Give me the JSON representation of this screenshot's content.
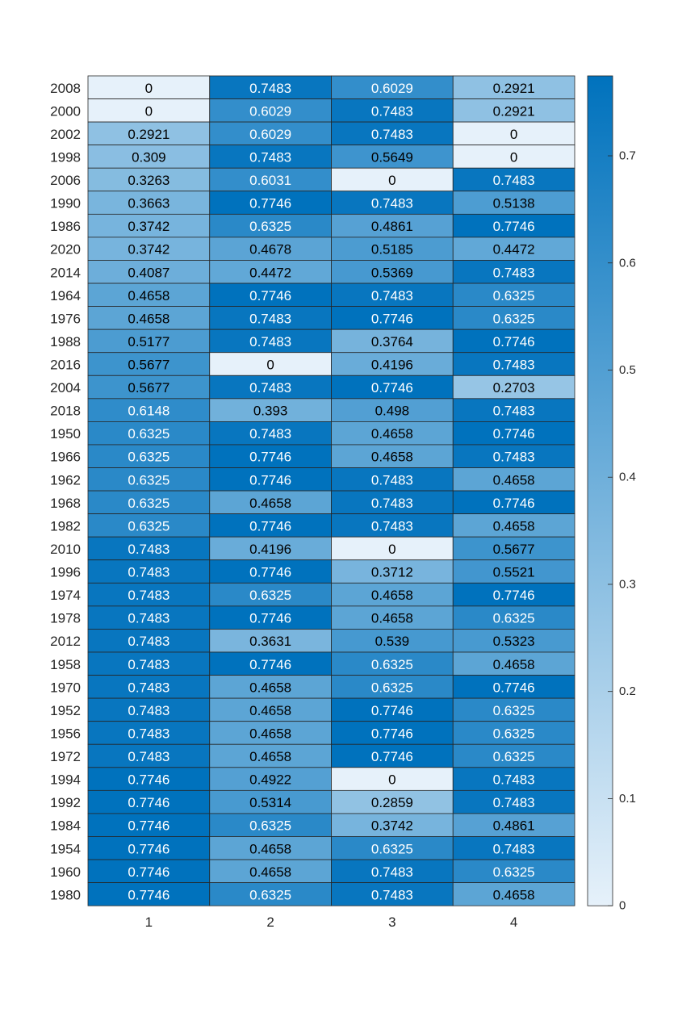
{
  "chart_data": {
    "type": "heatmap",
    "title": "",
    "xlabel": "",
    "ylabel": "",
    "columns": [
      "1",
      "2",
      "3",
      "4"
    ],
    "rows": [
      "2008",
      "2000",
      "2002",
      "1998",
      "2006",
      "1990",
      "1986",
      "2020",
      "2014",
      "1964",
      "1976",
      "1988",
      "2016",
      "2004",
      "2018",
      "1950",
      "1966",
      "1962",
      "1968",
      "1982",
      "2010",
      "1996",
      "1974",
      "1978",
      "2012",
      "1958",
      "1970",
      "1952",
      "1956",
      "1972",
      "1994",
      "1992",
      "1984",
      "1954",
      "1960",
      "1980"
    ],
    "values": [
      [
        "0",
        "0.7483",
        "0.6029",
        "0.2921"
      ],
      [
        "0",
        "0.6029",
        "0.7483",
        "0.2921"
      ],
      [
        "0.2921",
        "0.6029",
        "0.7483",
        "0"
      ],
      [
        "0.309",
        "0.7483",
        "0.5649",
        "0"
      ],
      [
        "0.3263",
        "0.6031",
        "0",
        "0.7483"
      ],
      [
        "0.3663",
        "0.7746",
        "0.7483",
        "0.5138"
      ],
      [
        "0.3742",
        "0.6325",
        "0.4861",
        "0.7746"
      ],
      [
        "0.3742",
        "0.4678",
        "0.5185",
        "0.4472"
      ],
      [
        "0.4087",
        "0.4472",
        "0.5369",
        "0.7483"
      ],
      [
        "0.4658",
        "0.7746",
        "0.7483",
        "0.6325"
      ],
      [
        "0.4658",
        "0.7483",
        "0.7746",
        "0.6325"
      ],
      [
        "0.5177",
        "0.7483",
        "0.3764",
        "0.7746"
      ],
      [
        "0.5677",
        "0",
        "0.4196",
        "0.7483"
      ],
      [
        "0.5677",
        "0.7483",
        "0.7746",
        "0.2703"
      ],
      [
        "0.6148",
        "0.393",
        "0.498",
        "0.7483"
      ],
      [
        "0.6325",
        "0.7483",
        "0.4658",
        "0.7746"
      ],
      [
        "0.6325",
        "0.7746",
        "0.4658",
        "0.7483"
      ],
      [
        "0.6325",
        "0.7746",
        "0.7483",
        "0.4658"
      ],
      [
        "0.6325",
        "0.4658",
        "0.7483",
        "0.7746"
      ],
      [
        "0.6325",
        "0.7746",
        "0.7483",
        "0.4658"
      ],
      [
        "0.7483",
        "0.4196",
        "0",
        "0.5677"
      ],
      [
        "0.7483",
        "0.7746",
        "0.3712",
        "0.5521"
      ],
      [
        "0.7483",
        "0.6325",
        "0.4658",
        "0.7746"
      ],
      [
        "0.7483",
        "0.7746",
        "0.4658",
        "0.6325"
      ],
      [
        "0.7483",
        "0.3631",
        "0.539",
        "0.5323"
      ],
      [
        "0.7483",
        "0.7746",
        "0.6325",
        "0.4658"
      ],
      [
        "0.7483",
        "0.4658",
        "0.6325",
        "0.7746"
      ],
      [
        "0.7483",
        "0.4658",
        "0.7746",
        "0.6325"
      ],
      [
        "0.7483",
        "0.4658",
        "0.7746",
        "0.6325"
      ],
      [
        "0.7483",
        "0.4658",
        "0.7746",
        "0.6325"
      ],
      [
        "0.7746",
        "0.4922",
        "0",
        "0.7483"
      ],
      [
        "0.7746",
        "0.5314",
        "0.2859",
        "0.7483"
      ],
      [
        "0.7746",
        "0.6325",
        "0.3742",
        "0.4861"
      ],
      [
        "0.7746",
        "0.4658",
        "0.6325",
        "0.7483"
      ],
      [
        "0.7746",
        "0.4658",
        "0.7483",
        "0.6325"
      ],
      [
        "0.7746",
        "0.6325",
        "0.7483",
        "0.4658"
      ]
    ],
    "colorbar": {
      "range": [
        0,
        0.7746
      ],
      "ticks": [
        "0",
        "0.1",
        "0.2",
        "0.3",
        "0.4",
        "0.5",
        "0.6",
        "0.7"
      ],
      "color_low": "#e6f1fa",
      "color_high": "#0072bd"
    },
    "grid": false,
    "legend": "colorbar-right"
  }
}
